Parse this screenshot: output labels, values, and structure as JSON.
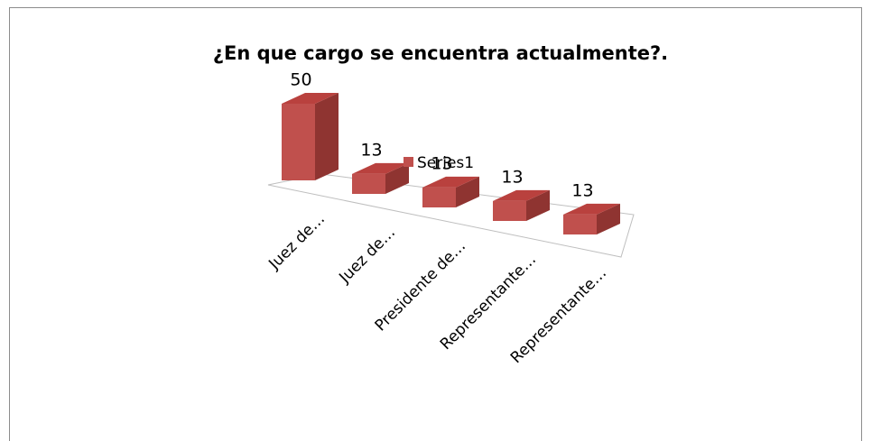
{
  "chart_data": {
    "type": "bar3d",
    "title": "¿En que cargo se encuentra actualmente?.",
    "categories": [
      "Juez de…",
      "Juez de…",
      "Presidente de…",
      "Representante…",
      "Representante…"
    ],
    "series": [
      {
        "name": "Series1",
        "color": "#c0504d",
        "values": [
          50,
          13,
          13,
          13,
          13
        ]
      }
    ]
  }
}
